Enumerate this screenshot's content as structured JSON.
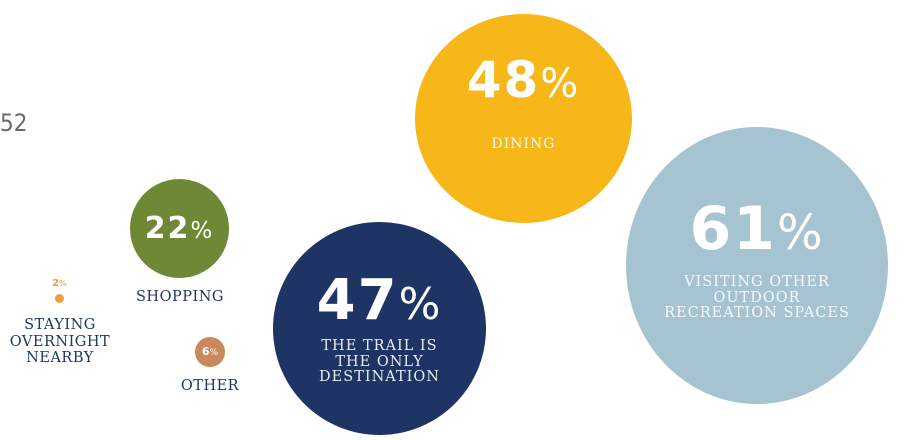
{
  "stray_text": "52",
  "colors": {
    "dining": "#f7b718",
    "recreation": "#a5c3d1",
    "trail": "#1d3464",
    "shopping": "#6f8836",
    "other": "#c9895a",
    "overnight": "#f39a3d",
    "label_text": "#1f3566"
  },
  "chart_data": {
    "type": "bubble",
    "items": [
      {
        "label": "DINING",
        "value": 48,
        "pct_text": "48",
        "sym": "%"
      },
      {
        "label": "VISITING OTHER OUTDOOR RECREATION SPACES",
        "value": 61,
        "pct_text": "61",
        "sym": "%"
      },
      {
        "label": "THE TRAIL IS THE ONLY DESTINATION",
        "value": 47,
        "pct_text": "47",
        "sym": "%"
      },
      {
        "label": "SHOPPING",
        "value": 22,
        "pct_text": "22",
        "sym": "%"
      },
      {
        "label": "OTHER",
        "value": 6,
        "pct_text": "6",
        "sym": "%"
      },
      {
        "label": "STAYING OVERNIGHT NEARBY",
        "value": 2,
        "pct_text": "2",
        "sym": "%"
      }
    ]
  }
}
